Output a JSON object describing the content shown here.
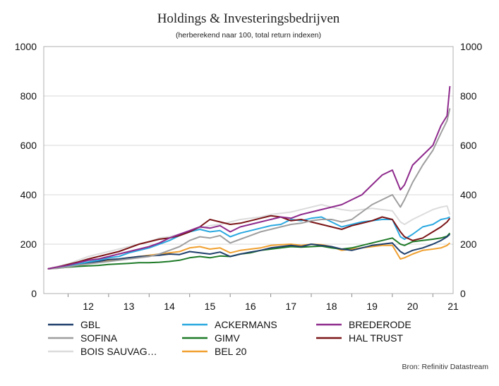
{
  "chart_data": {
    "type": "line",
    "title": "Holdings & Investeringsbedrijven",
    "subtitle": "(herberekend naar 100, total return indexen)",
    "source": "Bron: Refinitiv Datastream",
    "ylim": [
      0,
      1000
    ],
    "y_ticks": [
      "0",
      "200",
      "400",
      "600",
      "800",
      "1000"
    ],
    "x_ticks": [
      "12",
      "13",
      "14",
      "15",
      "16",
      "17",
      "18",
      "19",
      "20",
      "21"
    ],
    "xlim": [
      2011.4,
      2021.5
    ],
    "grid": true,
    "legend_position": "bottom",
    "x": [
      2011.5,
      2011.75,
      2012.0,
      2012.25,
      2012.5,
      2012.75,
      2013.0,
      2013.25,
      2013.5,
      2013.75,
      2014.0,
      2014.25,
      2014.5,
      2014.75,
      2015.0,
      2015.25,
      2015.5,
      2015.75,
      2016.0,
      2016.25,
      2016.5,
      2016.75,
      2017.0,
      2017.25,
      2017.5,
      2017.75,
      2018.0,
      2018.25,
      2018.5,
      2018.75,
      2019.0,
      2019.25,
      2019.5,
      2019.75,
      2020.0,
      2020.2,
      2020.3,
      2020.5,
      2020.75,
      2021.0,
      2021.2,
      2021.35,
      2021.42
    ],
    "series": [
      {
        "name": "GBL",
        "color": "#1f3f6b",
        "values": [
          100,
          105,
          110,
          118,
          125,
          130,
          138,
          140,
          145,
          150,
          152,
          155,
          160,
          158,
          170,
          165,
          160,
          168,
          150,
          160,
          168,
          175,
          185,
          190,
          195,
          190,
          200,
          195,
          190,
          180,
          175,
          185,
          195,
          200,
          205,
          170,
          160,
          175,
          185,
          200,
          215,
          230,
          240
        ]
      },
      {
        "name": "ACKERMANS",
        "color": "#29a8e0",
        "values": [
          100,
          105,
          112,
          120,
          128,
          135,
          145,
          150,
          165,
          175,
          185,
          200,
          215,
          235,
          250,
          260,
          250,
          255,
          230,
          245,
          255,
          265,
          275,
          280,
          300,
          295,
          305,
          310,
          290,
          270,
          280,
          290,
          295,
          300,
          300,
          230,
          220,
          240,
          270,
          280,
          300,
          305,
          310
        ]
      },
      {
        "name": "BREDERODE",
        "color": "#8e2a8c",
        "values": [
          100,
          108,
          115,
          125,
          135,
          140,
          150,
          160,
          170,
          180,
          190,
          205,
          225,
          240,
          255,
          270,
          265,
          275,
          250,
          270,
          280,
          290,
          300,
          310,
          305,
          320,
          330,
          340,
          350,
          360,
          380,
          400,
          440,
          480,
          500,
          420,
          440,
          520,
          560,
          600,
          680,
          720,
          840
        ]
      },
      {
        "name": "SOFINA",
        "color": "#9e9e9e",
        "values": [
          100,
          102,
          108,
          115,
          120,
          125,
          130,
          135,
          140,
          145,
          150,
          160,
          175,
          190,
          215,
          230,
          225,
          235,
          205,
          220,
          235,
          250,
          260,
          270,
          280,
          285,
          295,
          300,
          300,
          290,
          300,
          330,
          360,
          380,
          400,
          350,
          380,
          450,
          520,
          580,
          650,
          700,
          750
        ]
      },
      {
        "name": "GIMV",
        "color": "#1e7a28",
        "values": [
          100,
          103,
          107,
          110,
          112,
          114,
          118,
          120,
          122,
          125,
          125,
          127,
          130,
          135,
          145,
          150,
          145,
          152,
          150,
          160,
          165,
          175,
          180,
          185,
          190,
          188,
          190,
          192,
          185,
          180,
          185,
          195,
          205,
          215,
          225,
          200,
          195,
          210,
          215,
          220,
          225,
          232,
          245
        ]
      },
      {
        "name": "HAL TRUST",
        "color": "#7a1416",
        "values": [
          100,
          108,
          118,
          128,
          140,
          150,
          160,
          170,
          185,
          200,
          210,
          220,
          225,
          235,
          250,
          270,
          300,
          290,
          280,
          285,
          295,
          305,
          315,
          310,
          295,
          300,
          290,
          280,
          270,
          260,
          275,
          285,
          295,
          310,
          300,
          250,
          230,
          215,
          225,
          250,
          270,
          290,
          305
        ]
      },
      {
        "name": "BOIS SAUVAG…",
        "color": "#dcdcdc",
        "values": [
          100,
          110,
          120,
          135,
          150,
          160,
          170,
          180,
          190,
          200,
          210,
          225,
          230,
          240,
          250,
          265,
          275,
          280,
          290,
          300,
          305,
          310,
          320,
          325,
          330,
          340,
          350,
          360,
          350,
          340,
          335,
          340,
          345,
          340,
          335,
          290,
          280,
          300,
          320,
          340,
          350,
          355,
          320
        ]
      },
      {
        "name": "BEL 20",
        "color": "#f0a030",
        "values": [
          100,
          103,
          108,
          115,
          122,
          128,
          135,
          140,
          145,
          150,
          155,
          160,
          165,
          170,
          185,
          190,
          180,
          185,
          165,
          175,
          180,
          185,
          195,
          198,
          200,
          195,
          200,
          198,
          190,
          175,
          180,
          185,
          190,
          195,
          195,
          140,
          145,
          160,
          175,
          180,
          185,
          195,
          205
        ]
      }
    ]
  }
}
